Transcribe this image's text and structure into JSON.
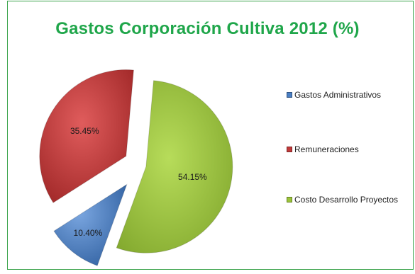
{
  "chart_data": {
    "type": "pie",
    "title": "Gastos Corporación Cultiva 2012 (%)",
    "slices": [
      {
        "name": "Gastos Administrativos",
        "value": 10.4,
        "label": "10.40%",
        "color": "#4a7fc4"
      },
      {
        "name": "Remuneraciones",
        "value": 35.45,
        "label": "35.45%",
        "color": "#c23b3b"
      },
      {
        "name": "Costo Desarrollo Proyectos",
        "value": 54.15,
        "label": "54.15%",
        "color": "#9bc43a"
      }
    ],
    "legend_position": "right",
    "exploded": true
  }
}
